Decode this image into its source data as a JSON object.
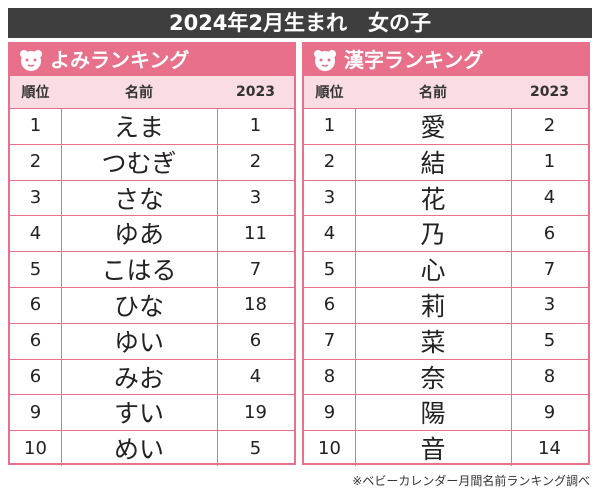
{
  "title": "2024年2月生まれ　女の子",
  "tables": [
    {
      "heading": "よみランキング",
      "columns": [
        "順位",
        "名前",
        "2023"
      ],
      "rows": [
        [
          1,
          "えま",
          1
        ],
        [
          2,
          "つむぎ",
          2
        ],
        [
          3,
          "さな",
          3
        ],
        [
          4,
          "ゆあ",
          11
        ],
        [
          5,
          "こはる",
          7
        ],
        [
          6,
          "ひな",
          18
        ],
        [
          6,
          "ゆい",
          6
        ],
        [
          6,
          "みお",
          4
        ],
        [
          9,
          "すい",
          19
        ],
        [
          10,
          "めい",
          5
        ]
      ]
    },
    {
      "heading": "漢字ランキング",
      "columns": [
        "順位",
        "名前",
        "2023"
      ],
      "rows": [
        [
          1,
          "愛",
          2
        ],
        [
          2,
          "結",
          1
        ],
        [
          3,
          "花",
          4
        ],
        [
          4,
          "乃",
          6
        ],
        [
          5,
          "心",
          7
        ],
        [
          6,
          "莉",
          3
        ],
        [
          7,
          "菜",
          5
        ],
        [
          8,
          "奈",
          8
        ],
        [
          9,
          "陽",
          9
        ],
        [
          10,
          "音",
          14
        ]
      ]
    }
  ],
  "footnote": "※ベビーカレンダー月間名前ランキング調べ"
}
